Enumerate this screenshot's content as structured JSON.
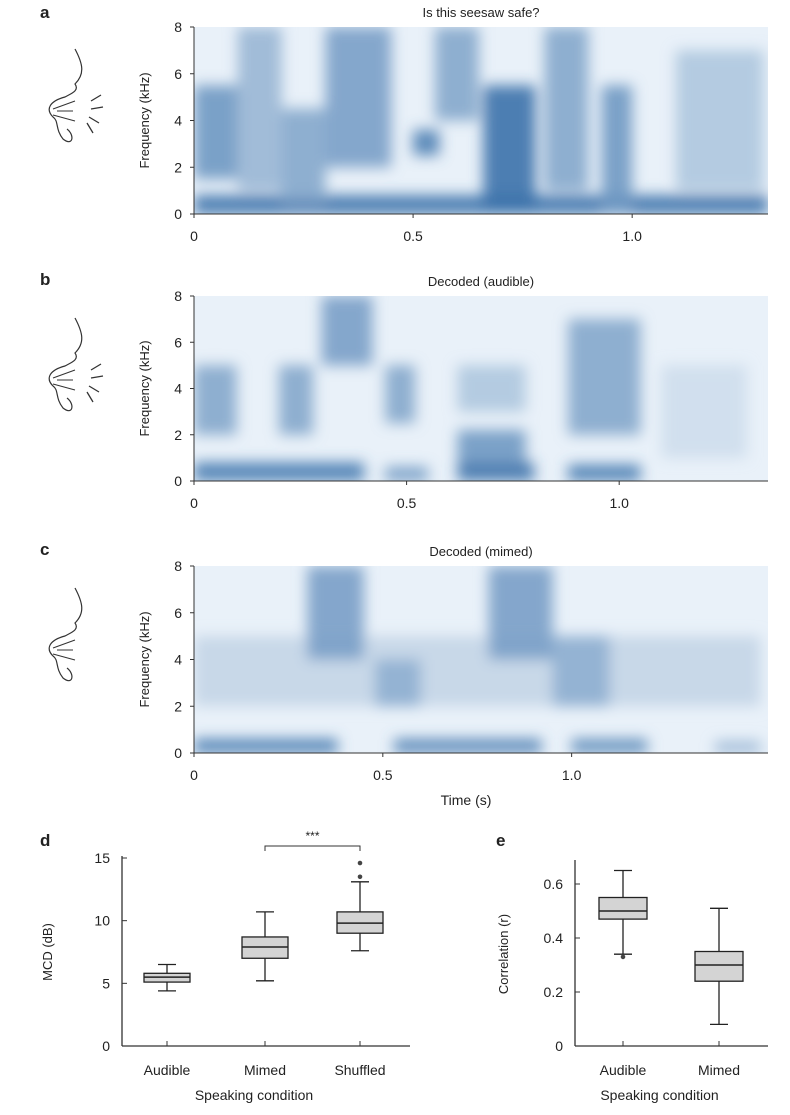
{
  "chart_data": [
    {
      "type": "heatmap",
      "panel": "a",
      "title": "Is this seesaw safe?",
      "ylabel": "Frequency (kHz)",
      "xlabel": "",
      "ylim": [
        0,
        8
      ],
      "xlim": [
        0,
        1.31
      ],
      "yticks": [
        "0",
        "2",
        "4",
        "6",
        "8"
      ],
      "xticks": [
        "0",
        "0.5",
        "1.0"
      ],
      "xtick_values": [
        0,
        0.5,
        1.0
      ],
      "speaker_icon": "audible-speaking-face",
      "energy_regions_s_khz": [
        [
          0,
          1.31,
          0,
          0.8,
          0.85
        ],
        [
          0,
          0.1,
          1.5,
          5.5,
          0.6
        ],
        [
          0.1,
          0.2,
          1,
          8,
          0.4
        ],
        [
          0.2,
          0.3,
          0.5,
          4.5,
          0.5
        ],
        [
          0.3,
          0.45,
          2,
          8,
          0.55
        ],
        [
          0.5,
          0.56,
          2.5,
          3.6,
          0.75
        ],
        [
          0.55,
          0.65,
          4,
          8,
          0.5
        ],
        [
          0.66,
          0.78,
          0,
          5.5,
          0.85
        ],
        [
          0.8,
          0.9,
          1,
          8,
          0.5
        ],
        [
          0.93,
          1.0,
          0,
          5.5,
          0.6
        ],
        [
          1.1,
          1.3,
          1,
          7,
          0.3
        ]
      ]
    },
    {
      "type": "heatmap",
      "panel": "b",
      "title": "Decoded (audible)",
      "ylabel": "Frequency (kHz)",
      "xlabel": "",
      "ylim": [
        0,
        8
      ],
      "xlim": [
        0,
        1.35
      ],
      "yticks": [
        "0",
        "2",
        "4",
        "6",
        "8"
      ],
      "xticks": [
        "0",
        "0.5",
        "1.0"
      ],
      "xtick_values": [
        0,
        0.5,
        1.0
      ],
      "speaker_icon": "audible-speaking-face",
      "energy_regions_s_khz": [
        [
          0,
          0.4,
          0,
          0.8,
          0.8
        ],
        [
          0.45,
          0.55,
          0,
          0.6,
          0.6
        ],
        [
          0.62,
          0.8,
          0,
          0.8,
          0.85
        ],
        [
          0.88,
          1.05,
          0,
          0.7,
          0.8
        ],
        [
          0,
          0.1,
          2,
          5,
          0.5
        ],
        [
          0.2,
          0.28,
          2,
          5,
          0.5
        ],
        [
          0.3,
          0.42,
          5,
          8,
          0.55
        ],
        [
          0.45,
          0.52,
          2.5,
          5,
          0.5
        ],
        [
          0.62,
          0.78,
          0.8,
          2.2,
          0.6
        ],
        [
          0.62,
          0.78,
          3,
          5,
          0.3
        ],
        [
          0.88,
          1.05,
          2,
          7,
          0.5
        ],
        [
          1.1,
          1.3,
          1,
          5,
          0.15
        ]
      ]
    },
    {
      "type": "heatmap",
      "panel": "c",
      "title": "Decoded (mimed)",
      "ylabel": "Frequency (kHz)",
      "xlabel": "Time (s)",
      "ylim": [
        0,
        8
      ],
      "xlim": [
        0,
        1.52
      ],
      "yticks": [
        "0",
        "2",
        "4",
        "6",
        "8"
      ],
      "xticks": [
        "0",
        "0.5",
        "1.0"
      ],
      "xtick_values": [
        0,
        0.5,
        1.0
      ],
      "speaker_icon": "mimed-face",
      "energy_regions_s_khz": [
        [
          0,
          0.38,
          0,
          0.6,
          0.8
        ],
        [
          0.53,
          0.92,
          0,
          0.6,
          0.75
        ],
        [
          1.0,
          1.2,
          0,
          0.6,
          0.7
        ],
        [
          1.38,
          1.5,
          0,
          0.5,
          0.4
        ],
        [
          0,
          1.5,
          2,
          5,
          0.2
        ],
        [
          0.3,
          0.45,
          4,
          8,
          0.55
        ],
        [
          0.48,
          0.6,
          2,
          4,
          0.45
        ],
        [
          0.78,
          0.95,
          4,
          8,
          0.55
        ],
        [
          0.95,
          1.1,
          2,
          5,
          0.45
        ]
      ]
    },
    {
      "type": "box",
      "panel": "d",
      "xlabel": "Speaking condition",
      "ylabel": "MCD (dB)",
      "ylim": [
        0,
        15
      ],
      "yticks": [
        "0",
        "5",
        "10",
        "15"
      ],
      "categories": [
        "Audible",
        "Mimed",
        "Shuffled"
      ],
      "boxes": [
        {
          "min": 4.4,
          "q1": 5.1,
          "median": 5.5,
          "q3": 5.8,
          "max": 6.5,
          "outliers": []
        },
        {
          "min": 5.2,
          "q1": 7.0,
          "median": 7.9,
          "q3": 8.7,
          "max": 10.7,
          "outliers": []
        },
        {
          "min": 7.6,
          "q1": 9.0,
          "median": 9.8,
          "q3": 10.7,
          "max": 13.1,
          "outliers": [
            13.5,
            14.6
          ]
        }
      ],
      "significance": {
        "between": [
          "Mimed",
          "Shuffled"
        ],
        "label": "***"
      }
    },
    {
      "type": "box",
      "panel": "e",
      "xlabel": "Speaking condition",
      "ylabel": "Correlation (r)",
      "ylim": [
        0,
        0.7
      ],
      "yticks": [
        "0",
        "0.2",
        "0.4",
        "0.6"
      ],
      "categories": [
        "Audible",
        "Mimed"
      ],
      "boxes": [
        {
          "min": 0.34,
          "q1": 0.47,
          "median": 0.5,
          "q3": 0.55,
          "max": 0.65,
          "outliers": [
            0.33
          ]
        },
        {
          "min": 0.08,
          "q1": 0.24,
          "median": 0.3,
          "q3": 0.35,
          "max": 0.51,
          "outliers": []
        }
      ]
    }
  ],
  "colors": {
    "dark": "#1a5a9c",
    "light": "#eef4fa",
    "box_fill": "#d4d4d4"
  }
}
